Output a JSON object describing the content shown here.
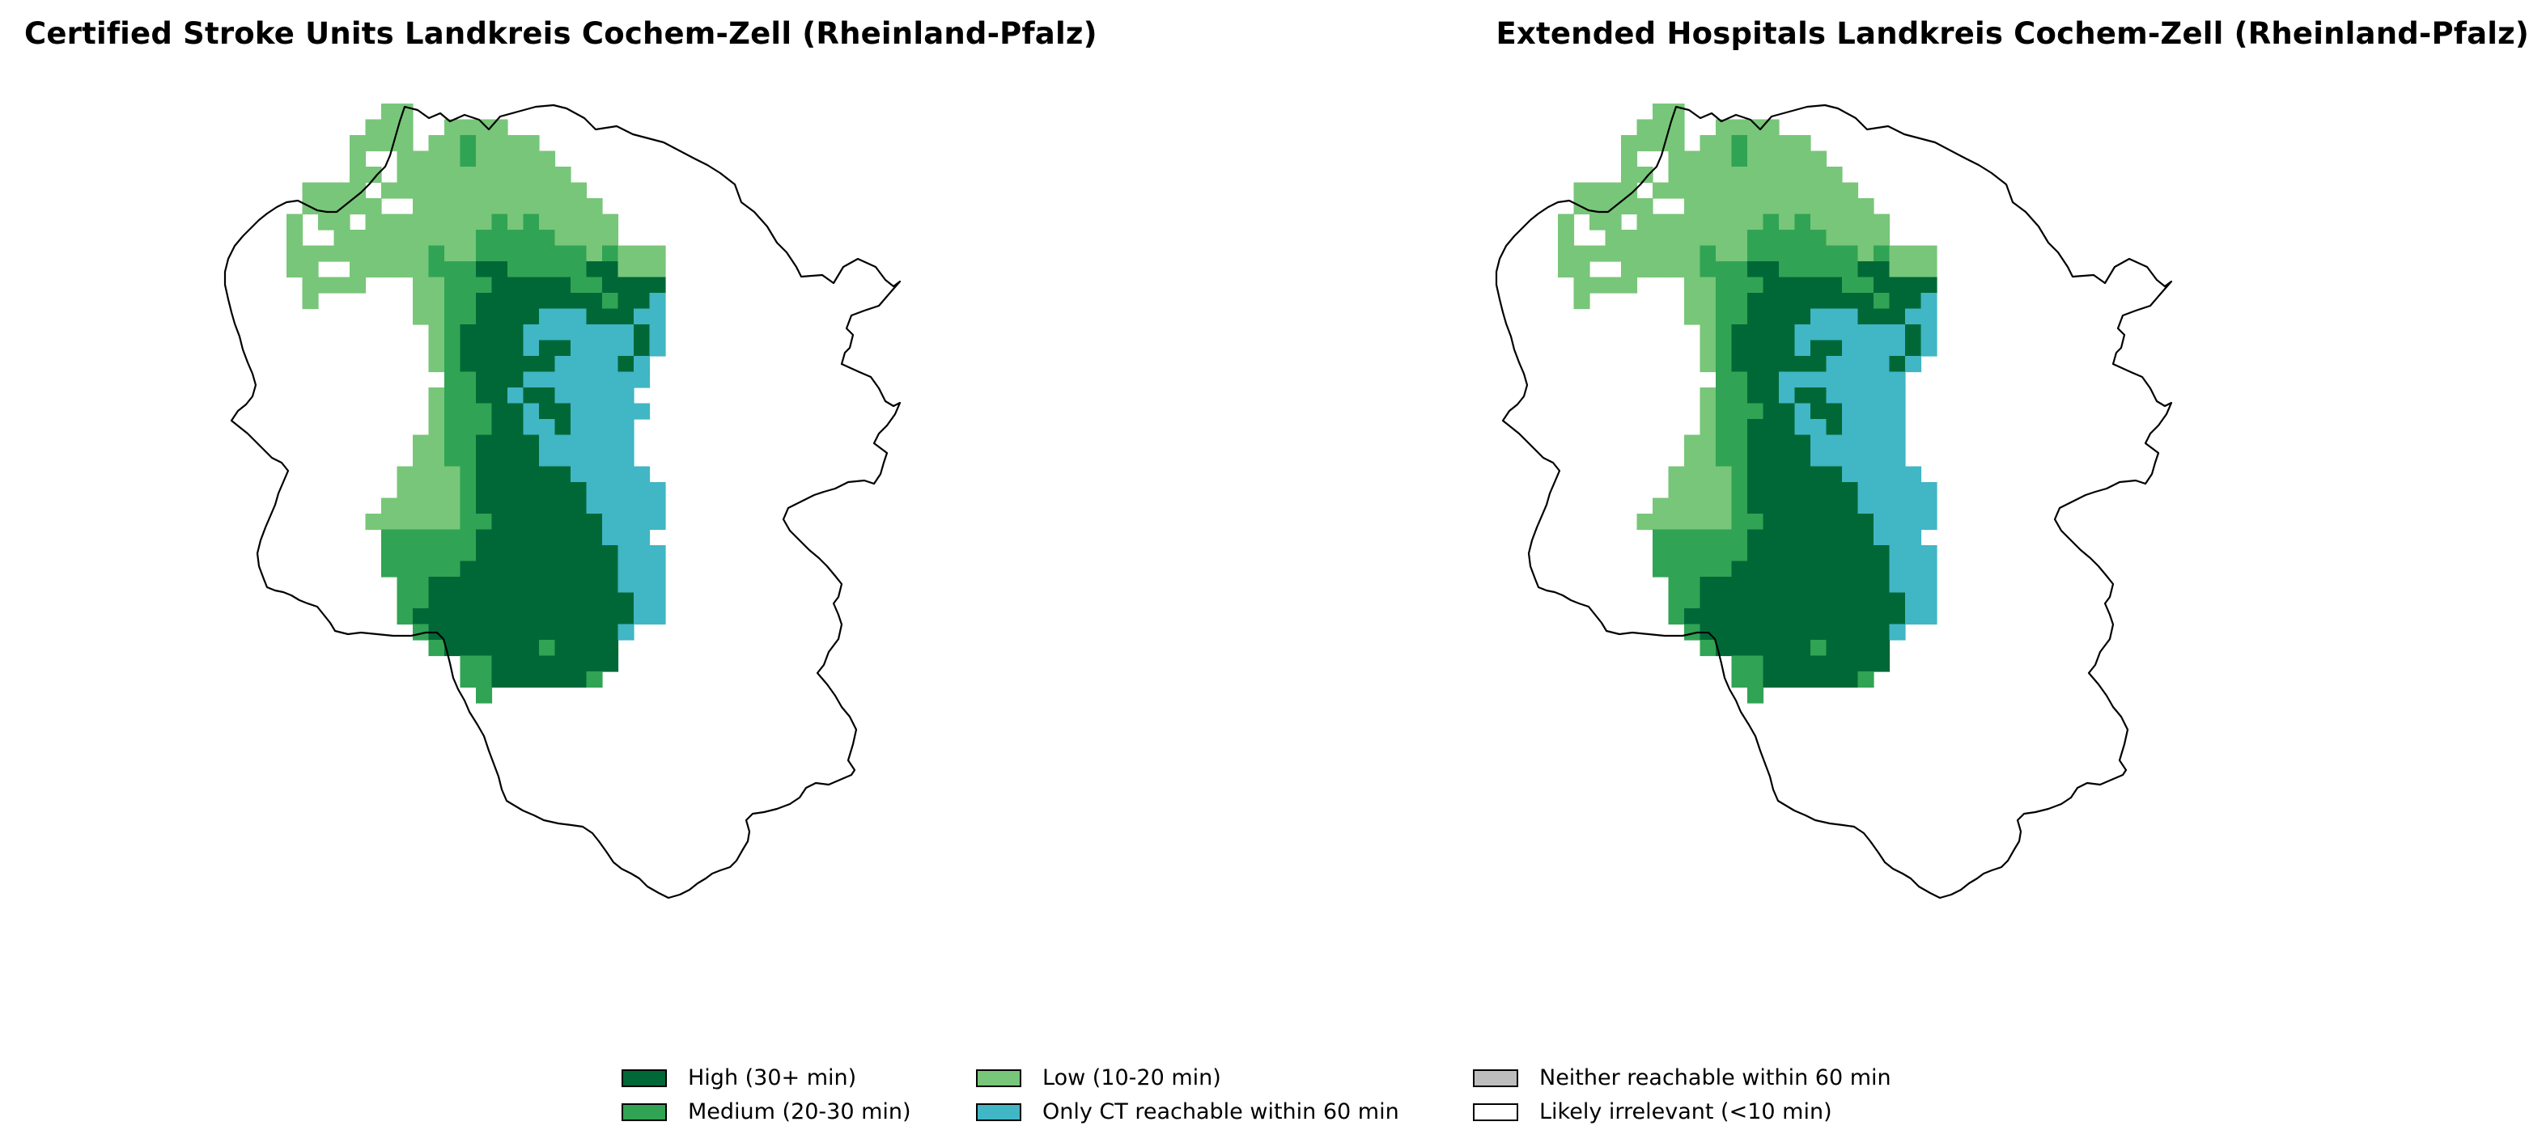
{
  "panels": [
    {
      "title": "Certified Stroke Units Landkreis Cochem-Zell (Rheinland-Pfalz)"
    },
    {
      "title": "Extended Hospitals Landkreis Cochem-Zell (Rheinland-Pfalz)"
    }
  ],
  "legend": [
    {
      "key": "H",
      "label": "High (30+ min)",
      "color": "#006837"
    },
    {
      "key": "M",
      "label": "Medium (20-30 min)",
      "color": "#31a354"
    },
    {
      "key": "L",
      "label": "Low (10-20 min)",
      "color": "#78c679"
    },
    {
      "key": "C",
      "label": "Only CT reachable within 60 min",
      "color": "#41b6c4"
    },
    {
      "key": "N",
      "label": "Neither reachable within 60 min",
      "color": "#bdbdbd"
    },
    {
      "key": "W",
      "label": "Likely irrelevant (<10 min)",
      "color": "#ffffff"
    }
  ],
  "grid_maps": [
    {
      "rows": [
        "..........LL................",
        ".........LLL..LLLL..........",
        "........LLLL.LLMLLLL........",
        "........LW.LLLLMLLLLL.......",
        "........LLWLLLLLLLLLLL......",
        ".....LLLLWLLLLLLLLLLLLL.....",
        ".....LLLLLWWLLLLLLLLLLLL....",
        "....LWLLWLLLLLLLLMLMLLLLL...",
        "....LWWLLLLLLLLLMMMMMLLLL...",
        "....LLLLLLLLLMLLMMMMMMMLMLLL",
        "....LLWWLLLLLMMMHHMMMMMHHLLL",
        ".....LLLLWWWLLMMMHHHHHMMHHHH",
        ".....LWWWWWWLLMMHHHHHHHHMHHC",
        "....WWWWWWWWLLMMHHHHCCCHHHCC",
        "....WWWWWWWWWLMHHHHCCCCCCCHC",
        ".....WWWWWWWWLMHHHHCHHCCCCHC",
        ".....WWWWWWWWLMHHHHHHCCCCHC.",
        ".....WWWWWWWWWMMHHHCCCCCCCC.",
        ".....WWWWWWWWLMMHHCHHCCCCC..",
        ".....WWWWWWWWLMMMHHCHHCCCCC.",
        ".....WWWWWWWWLMMMHHCCHCCCC..",
        ".....WWWWWWWLLMMHHHHCCCCCC..",
        ".....WWWWWWWLLMMHHHHCCCCCC..",
        ".....WWWWWWLLLLMHHHHHHCCCCC.",
        "......WWWWWLLLLMHHHHHHHCCCCC",
        "......WWWWLLLLLMHHHHHHHCCCCC",
        "......WWWLLLLLLMMHHHHHHHCCCC",
        "..........MMMMMMHHHHHHHHCCC.",
        "..........MMMMMMHHHHHHHHHCCC",
        "..........MMMMMHHHHHHHHHHCCC",
        "...........MMHHHHHHHHHHHHCCC",
        "...........MMHHHHHHHHHHHHHCC",
        "...........MHHHHHHHHHHHHHHCC",
        "............MHHHHHHHHHHHHCW.",
        ".............MHHHHHHMHHHH...",
        "...............MMHHHHHHHHW..",
        "...............MMHHHHHHMW...",
        "................M..........."
      ]
    },
    {
      "rows": [
        "..........LL................",
        ".........LLL..LLLL..........",
        "........LLLL.LLMLLLL........",
        "........LW.LLLLMLLLLL.......",
        "........LLWLLLLLLLLLLL......",
        ".....LLLLWLLLLLLLLLLLLL.....",
        ".....LLLLLWWLLLLLLLLLLLL....",
        "....LWLLWLLLLLLLLMLMLLLLL...",
        "....LWWLLLLLLLLLMMMMMLLLL...",
        "....LLLLLLLLLMLLMMMMMMMLMLLL",
        "....LLWWLLLLLMMMHHMMMMMHHLLL",
        ".....LLLLWWWLLMMMHHHHHMMHHHH",
        ".....LWWWWWWLLMMHHHHHHHHMHHC",
        "....WWWWWWWWLLMMHHHHCCCHHHCC",
        "....WWWWWWWWWLMHHHHCCCCCCCHC",
        ".....WWWWWWWWLMHHHHCHHCCCCHC",
        ".....WWWWWWWWLMHHHHHHCCCCHC.",
        ".....WWWWWWWWWMMHHCCCCCCCC..",
        ".....WWWWWWWWLMMHHCHHCCCCC..",
        ".....WWWWWWWWLMMMHHCHHCCCC..",
        ".....WWWWWWWWLMMHHHCCHCCCC..",
        ".....WWWWWWWLLMMHHHHCCCCCC..",
        ".....WWWWWWWLLMMHHHHCCCCCC..",
        ".....WWWWWWLLLLMHHHHHHCCCCC.",
        "......WWWWWLLLLMHHHHHHHCCCCC",
        "......WWWWLLLLLMHHHHHHHCCCCC",
        "......WWWLLLLLLMMHHHHHHHCCCC",
        "..........MMMMMMHHHHHHHHCCC.",
        "..........MMMMMMHHHHHHHHHCCC",
        "..........MMMMMHHHHHHHHHHCCC",
        "...........MMHHHHHHHHHHHHCCC",
        "...........MMHHHHHHHHHHHHHCC",
        "...........MHHHHHHHHHHHHHHCC",
        "............MHHHHHHHHHHHHCW.",
        ".............MHHHHHHMHHHH...",
        "...............MMHHHHHHHHW..",
        "...............MMHHHHHHMW...",
        "................M..........."
      ]
    }
  ]
}
